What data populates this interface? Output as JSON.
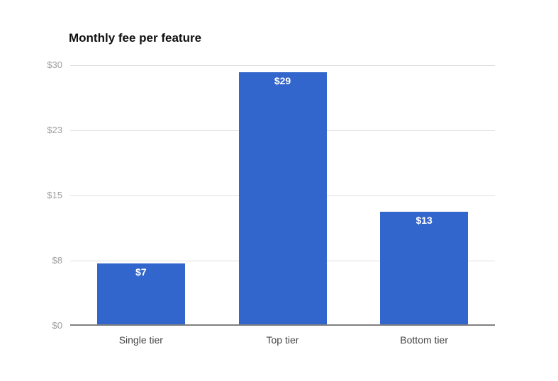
{
  "chart_data": {
    "type": "bar",
    "title": "Monthly fee per feature",
    "categories": [
      "Single tier",
      "Top tier",
      "Bottom tier"
    ],
    "values": [
      7,
      29,
      13
    ],
    "value_labels": [
      "$7",
      "$29",
      "$13"
    ],
    "xlabel": "",
    "ylabel": "",
    "ylim": [
      0,
      30
    ],
    "yticks": [
      {
        "label": "$0",
        "value": 0
      },
      {
        "label": "$8",
        "value": 7.5
      },
      {
        "label": "$15",
        "value": 15
      },
      {
        "label": "$23",
        "value": 22.5
      },
      {
        "label": "$30",
        "value": 30
      }
    ],
    "grid": true,
    "legend": "none",
    "colors": {
      "bar": "#3366cc",
      "value_label": "#ffffff",
      "grid": "#e0e0e0",
      "axis": "#808080",
      "ytick_text": "#9e9e9e",
      "category_text": "#444444",
      "title_text": "#111111",
      "background": "#ffffff"
    }
  }
}
